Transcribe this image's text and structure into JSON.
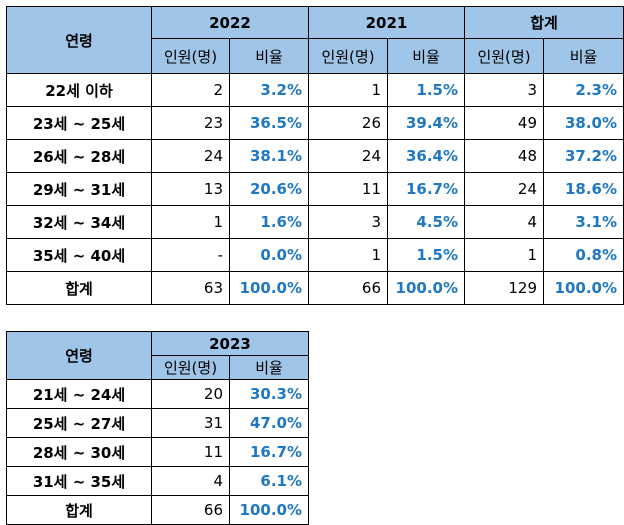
{
  "table1": {
    "age_header": "연령",
    "years": [
      "2022",
      "2021",
      "합계"
    ],
    "sub_headers": [
      "인원(명)",
      "비율"
    ],
    "rows": [
      {
        "age": "22세 이하",
        "vals": [
          "2",
          "3.2%",
          "1",
          "1.5%",
          "3",
          "2.3%"
        ]
      },
      {
        "age": "23세 ~ 25세",
        "vals": [
          "23",
          "36.5%",
          "26",
          "39.4%",
          "49",
          "38.0%"
        ]
      },
      {
        "age": "26세 ~ 28세",
        "vals": [
          "24",
          "38.1%",
          "24",
          "36.4%",
          "48",
          "37.2%"
        ]
      },
      {
        "age": "29세 ~ 31세",
        "vals": [
          "13",
          "20.6%",
          "11",
          "16.7%",
          "24",
          "18.6%"
        ]
      },
      {
        "age": "32세 ~ 34세",
        "vals": [
          "1",
          "1.6%",
          "3",
          "4.5%",
          "4",
          "3.1%"
        ]
      },
      {
        "age": "35세 ~ 40세",
        "vals": [
          "-",
          "0.0%",
          "1",
          "1.5%",
          "1",
          "0.8%"
        ]
      },
      {
        "age": "합계",
        "vals": [
          "63",
          "100.0%",
          "66",
          "100.0%",
          "129",
          "100.0%"
        ]
      }
    ]
  },
  "table2": {
    "age_header": "연령",
    "year": "2023",
    "sub_headers": [
      "인원(명)",
      "비율"
    ],
    "rows": [
      {
        "age": "21세 ~ 24세",
        "vals": [
          "20",
          "30.3%"
        ]
      },
      {
        "age": "25세 ~ 27세",
        "vals": [
          "31",
          "47.0%"
        ]
      },
      {
        "age": "28세 ~ 30세",
        "vals": [
          "11",
          "16.7%"
        ]
      },
      {
        "age": "31세 ~ 35세",
        "vals": [
          "4",
          "6.1%"
        ]
      },
      {
        "age": "합계",
        "vals": [
          "66",
          "100.0%"
        ]
      }
    ]
  }
}
